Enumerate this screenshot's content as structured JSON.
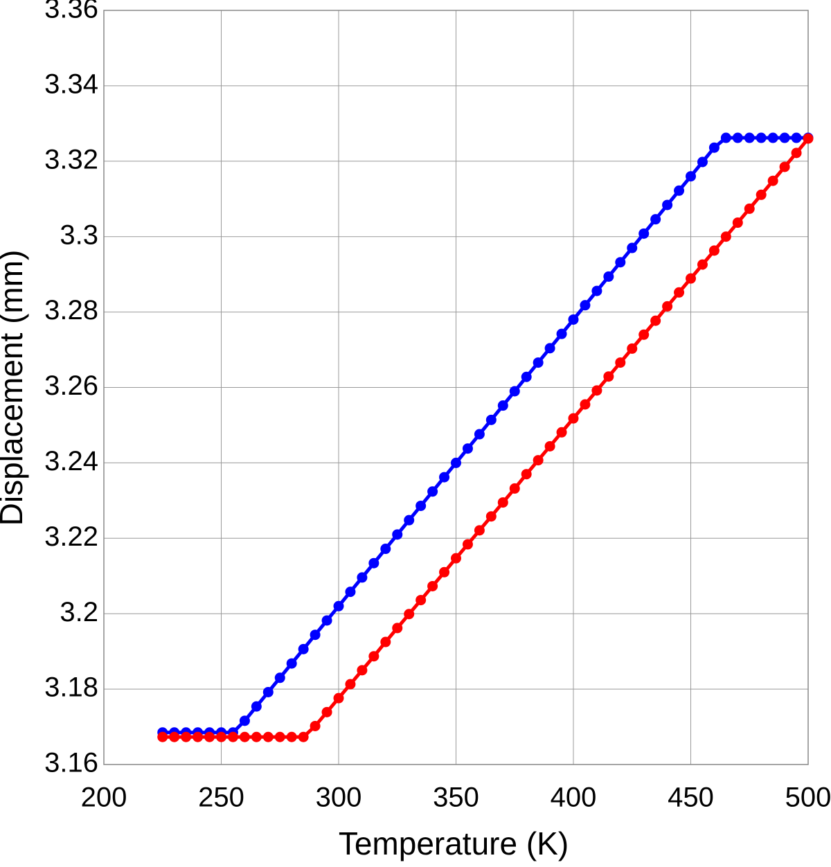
{
  "chart_data": {
    "type": "line",
    "xlabel": "Temperature (K)",
    "ylabel": "Displacement (mm)",
    "x": [
      225,
      230,
      235,
      240,
      245,
      250,
      255,
      260,
      265,
      270,
      275,
      280,
      285,
      290,
      295,
      300,
      305,
      310,
      315,
      320,
      325,
      330,
      335,
      340,
      345,
      350,
      355,
      360,
      365,
      370,
      375,
      380,
      385,
      390,
      395,
      400,
      405,
      410,
      415,
      420,
      425,
      430,
      435,
      440,
      445,
      450,
      455,
      460,
      465,
      470,
      475,
      480,
      485,
      490,
      495,
      500
    ],
    "series": [
      {
        "color": "#0000ff",
        "values": [
          3.1685,
          3.1685,
          3.1685,
          3.1685,
          3.1685,
          3.1685,
          3.1685,
          3.1716,
          3.1754,
          3.1792,
          3.183,
          3.1868,
          3.1906,
          3.1944,
          3.1982,
          3.202,
          3.2058,
          3.2096,
          3.2134,
          3.2172,
          3.221,
          3.2248,
          3.2286,
          3.2324,
          3.2362,
          3.24,
          3.2438,
          3.2476,
          3.2514,
          3.2552,
          3.259,
          3.2628,
          3.2666,
          3.2704,
          3.2742,
          3.278,
          3.2818,
          3.2856,
          3.2894,
          3.2932,
          3.297,
          3.3008,
          3.3046,
          3.3084,
          3.3122,
          3.316,
          3.3198,
          3.3236,
          3.3262,
          3.3262,
          3.3262,
          3.3262,
          3.3262,
          3.3262,
          3.3262,
          3.3262
        ]
      },
      {
        "color": "#ff0000",
        "values": [
          3.1673,
          3.1673,
          3.1673,
          3.1673,
          3.1673,
          3.1673,
          3.1673,
          3.1673,
          3.1673,
          3.1673,
          3.1673,
          3.1673,
          3.1673,
          3.1702,
          3.1739,
          3.1776,
          3.1813,
          3.185,
          3.1887,
          3.1925,
          3.1962,
          3.1999,
          3.2036,
          3.2073,
          3.211,
          3.2147,
          3.2184,
          3.2221,
          3.2258,
          3.2295,
          3.2332,
          3.237,
          3.2407,
          3.2444,
          3.2481,
          3.2518,
          3.2555,
          3.2592,
          3.2629,
          3.2666,
          3.2703,
          3.274,
          3.2777,
          3.2815,
          3.2852,
          3.2889,
          3.2926,
          3.2963,
          3.3,
          3.3037,
          3.3074,
          3.3111,
          3.3148,
          3.3185,
          3.3222,
          3.326
        ]
      }
    ],
    "xlim": [
      200,
      500
    ],
    "xticks": [
      200,
      250,
      300,
      350,
      400,
      450,
      500
    ],
    "ylim": [
      3.16,
      3.36
    ],
    "yticks": [
      3.16,
      3.18,
      3.2,
      3.22,
      3.24,
      3.26,
      3.28,
      3.3,
      3.32,
      3.34,
      3.36
    ],
    "grid": true
  }
}
